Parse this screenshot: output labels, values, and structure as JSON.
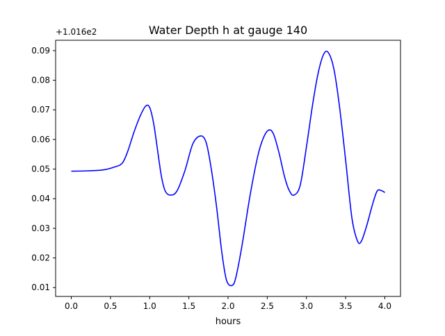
{
  "chart_data": {
    "type": "line",
    "title": "Water Depth h at gauge 140",
    "xlabel": "hours",
    "ylabel": "",
    "offset_label": "+1.016e2",
    "xlim": [
      -0.2,
      4.2
    ],
    "ylim": [
      0.007,
      0.0935
    ],
    "xticks": [
      0.0,
      0.5,
      1.0,
      1.5,
      2.0,
      2.5,
      3.0,
      3.5,
      4.0
    ],
    "xtick_labels": [
      "0.0",
      "0.5",
      "1.0",
      "1.5",
      "2.0",
      "2.5",
      "3.0",
      "3.5",
      "4.0"
    ],
    "yticks": [
      0.01,
      0.02,
      0.03,
      0.04,
      0.05,
      0.06,
      0.07,
      0.08,
      0.09
    ],
    "ytick_labels": [
      "0.01",
      "0.02",
      "0.03",
      "0.04",
      "0.05",
      "0.06",
      "0.07",
      "0.08",
      "0.09"
    ],
    "grid": false,
    "series": [
      {
        "color": "#0000ff",
        "x": [
          0.0,
          0.2,
          0.4,
          0.55,
          0.65,
          0.72,
          0.8,
          0.88,
          0.95,
          1.0,
          1.05,
          1.1,
          1.15,
          1.2,
          1.27,
          1.35,
          1.45,
          1.55,
          1.65,
          1.72,
          1.78,
          1.85,
          1.92,
          1.98,
          2.05,
          2.1,
          2.18,
          2.28,
          2.38,
          2.45,
          2.52,
          2.58,
          2.65,
          2.72,
          2.78,
          2.84,
          2.92,
          3.0,
          3.08,
          3.15,
          3.22,
          3.28,
          3.35,
          3.42,
          3.5,
          3.58,
          3.65,
          3.7,
          3.77,
          3.84,
          3.9,
          3.95,
          4.0
        ],
        "y": [
          0.0493,
          0.0494,
          0.0497,
          0.0507,
          0.052,
          0.056,
          0.0625,
          0.068,
          0.0713,
          0.0708,
          0.0655,
          0.0565,
          0.0475,
          0.0425,
          0.0412,
          0.0427,
          0.0495,
          0.0585,
          0.0612,
          0.059,
          0.051,
          0.038,
          0.022,
          0.0125,
          0.0107,
          0.0135,
          0.0245,
          0.041,
          0.0545,
          0.0605,
          0.0632,
          0.0618,
          0.0555,
          0.0475,
          0.0428,
          0.0412,
          0.0445,
          0.0575,
          0.072,
          0.0825,
          0.0888,
          0.0893,
          0.0838,
          0.0715,
          0.053,
          0.0335,
          0.0258,
          0.0256,
          0.031,
          0.0378,
          0.0425,
          0.0428,
          0.0421
        ]
      }
    ]
  }
}
